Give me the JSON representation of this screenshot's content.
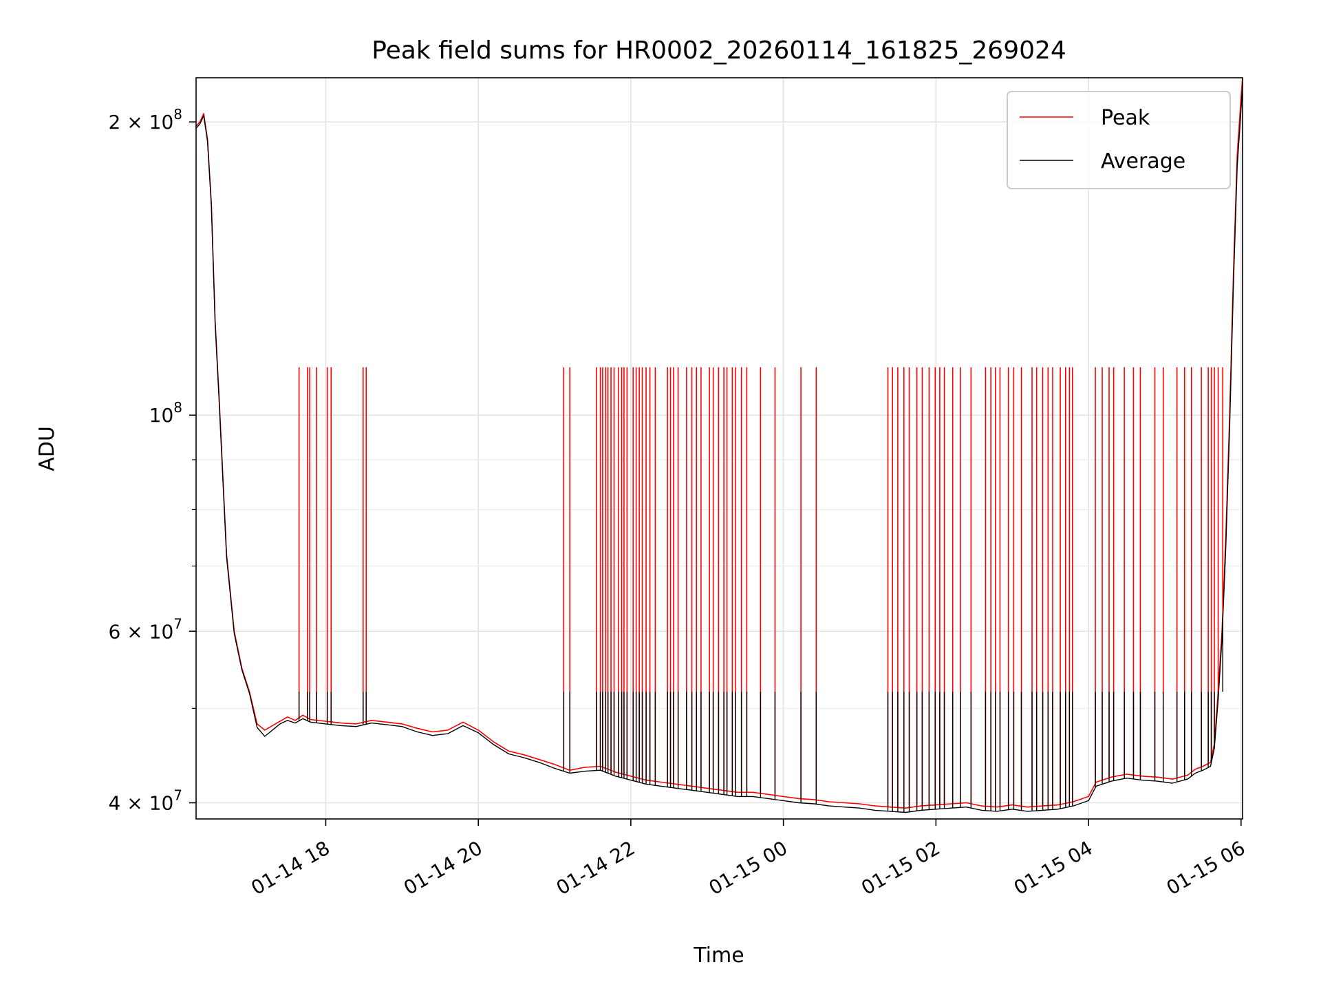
{
  "chart_data": {
    "type": "line",
    "title": "Peak field sums for HR0002_20260114_161825_269024",
    "xlabel": "Time",
    "ylabel": "ADU",
    "yscale": "log",
    "grid": true,
    "legend_position": "top-right",
    "x_unit": "hours since 2026-01-14 00:00",
    "xlim": [
      16.3,
      30.02
    ],
    "ylim": [
      38500000,
      222000000
    ],
    "x_ticks": [
      {
        "value": 18,
        "label": "01-14 18"
      },
      {
        "value": 20,
        "label": "01-14 20"
      },
      {
        "value": 22,
        "label": "01-14 22"
      },
      {
        "value": 24,
        "label": "01-15 00"
      },
      {
        "value": 26,
        "label": "01-15 02"
      },
      {
        "value": 28,
        "label": "01-15 04"
      },
      {
        "value": 30,
        "label": "01-15 06"
      }
    ],
    "y_major_ticks": [
      {
        "value": 40000000,
        "mantissa": "4",
        "exp": "7"
      },
      {
        "value": 60000000,
        "mantissa": "6",
        "exp": "7"
      },
      {
        "value": 100000000,
        "mantissa": "",
        "exp": "8"
      },
      {
        "value": 200000000,
        "mantissa": "2",
        "exp": "8"
      }
    ],
    "y_minor_ticks": [
      50000000,
      70000000,
      80000000,
      90000000
    ],
    "series": [
      {
        "name": "Peak",
        "color": "#ff0000",
        "points": [
          [
            16.3,
            198000000
          ],
          [
            16.35,
            200000000
          ],
          [
            16.4,
            204000000
          ],
          [
            16.42,
            199000000
          ],
          [
            16.45,
            192000000
          ],
          [
            16.5,
            165000000
          ],
          [
            16.55,
            125000000
          ],
          [
            16.6,
            105000000
          ],
          [
            16.7,
            72000000
          ],
          [
            16.8,
            60000000
          ],
          [
            16.9,
            55000000
          ],
          [
            17.0,
            52000000
          ],
          [
            17.1,
            48200000
          ],
          [
            17.2,
            47500000
          ],
          [
            17.3,
            48000000
          ],
          [
            17.4,
            48500000
          ],
          [
            17.5,
            49000000
          ],
          [
            17.6,
            48600000
          ],
          [
            17.7,
            49200000
          ],
          [
            17.8,
            48700000
          ],
          [
            18.0,
            48500000
          ],
          [
            18.2,
            48300000
          ],
          [
            18.4,
            48200000
          ],
          [
            18.6,
            48600000
          ],
          [
            18.8,
            48400000
          ],
          [
            19.0,
            48200000
          ],
          [
            19.2,
            47700000
          ],
          [
            19.4,
            47300000
          ],
          [
            19.6,
            47500000
          ],
          [
            19.8,
            48400000
          ],
          [
            20.0,
            47500000
          ],
          [
            20.2,
            46200000
          ],
          [
            20.4,
            45200000
          ],
          [
            20.6,
            44800000
          ],
          [
            20.8,
            44300000
          ],
          [
            21.0,
            43800000
          ],
          [
            21.2,
            43200000
          ],
          [
            21.4,
            43500000
          ],
          [
            21.6,
            43600000
          ],
          [
            21.8,
            43000000
          ],
          [
            22.0,
            42600000
          ],
          [
            22.2,
            42200000
          ],
          [
            22.4,
            42000000
          ],
          [
            22.6,
            41800000
          ],
          [
            22.8,
            41600000
          ],
          [
            23.0,
            41400000
          ],
          [
            23.2,
            41200000
          ],
          [
            23.4,
            41000000
          ],
          [
            23.6,
            41000000
          ],
          [
            23.8,
            40800000
          ],
          [
            24.0,
            40600000
          ],
          [
            24.2,
            40400000
          ],
          [
            24.4,
            40300000
          ],
          [
            24.6,
            40100000
          ],
          [
            24.8,
            40000000
          ],
          [
            25.0,
            39900000
          ],
          [
            25.2,
            39700000
          ],
          [
            25.4,
            39600000
          ],
          [
            25.6,
            39500000
          ],
          [
            25.8,
            39700000
          ],
          [
            26.0,
            39800000
          ],
          [
            26.2,
            39900000
          ],
          [
            26.4,
            40000000
          ],
          [
            26.6,
            39700000
          ],
          [
            26.8,
            39600000
          ],
          [
            27.0,
            39800000
          ],
          [
            27.2,
            39600000
          ],
          [
            27.4,
            39700000
          ],
          [
            27.6,
            39800000
          ],
          [
            27.8,
            40100000
          ],
          [
            28.0,
            40600000
          ],
          [
            28.1,
            42000000
          ],
          [
            28.3,
            42500000
          ],
          [
            28.5,
            42800000
          ],
          [
            28.7,
            42600000
          ],
          [
            28.9,
            42500000
          ],
          [
            29.1,
            42300000
          ],
          [
            29.3,
            42700000
          ],
          [
            29.4,
            43300000
          ],
          [
            29.5,
            43600000
          ],
          [
            29.6,
            44000000
          ],
          [
            29.65,
            46000000
          ],
          [
            29.7,
            52000000
          ],
          [
            29.75,
            60000000
          ],
          [
            29.8,
            75000000
          ],
          [
            29.85,
            100000000
          ],
          [
            29.9,
            140000000
          ],
          [
            29.95,
            185000000
          ],
          [
            30.0,
            212000000
          ],
          [
            30.02,
            222000000
          ]
        ],
        "spikes_at_x": [
          17.65,
          17.76,
          17.79,
          17.88,
          18.02,
          18.07,
          18.49,
          18.53,
          21.12,
          21.2,
          21.55,
          21.6,
          21.63,
          21.67,
          21.7,
          21.74,
          21.78,
          21.84,
          21.88,
          21.91,
          21.95,
          22.03,
          22.07,
          22.11,
          22.15,
          22.2,
          22.25,
          22.32,
          22.48,
          22.52,
          22.56,
          22.62,
          22.73,
          22.8,
          22.86,
          22.92,
          23.03,
          23.08,
          23.15,
          23.22,
          23.26,
          23.33,
          23.37,
          23.45,
          23.52,
          23.7,
          23.89,
          24.23,
          24.43,
          25.37,
          25.43,
          25.5,
          25.58,
          25.65,
          25.75,
          25.82,
          25.91,
          25.99,
          26.05,
          26.11,
          26.22,
          26.32,
          26.46,
          26.65,
          26.72,
          26.78,
          26.84,
          26.95,
          27.02,
          27.12,
          27.26,
          27.32,
          27.4,
          27.47,
          27.53,
          27.63,
          27.7,
          27.75,
          27.79,
          28.09,
          28.18,
          28.27,
          28.33,
          28.47,
          28.59,
          28.68,
          28.87,
          28.98,
          29.16,
          29.26,
          29.35,
          29.48,
          29.57,
          29.61,
          29.65,
          29.7,
          29.76
        ],
        "spike_peak_value": 112000000
      },
      {
        "name": "Average",
        "color": "#000000",
        "points": [
          [
            16.3,
            197000000
          ],
          [
            16.35,
            199000000
          ],
          [
            16.4,
            203000000
          ],
          [
            16.42,
            198000000
          ],
          [
            16.45,
            191000000
          ],
          [
            16.5,
            164000000
          ],
          [
            16.55,
            124000000
          ],
          [
            16.6,
            104000000
          ],
          [
            16.7,
            71500000
          ],
          [
            16.8,
            59700000
          ],
          [
            16.9,
            54800000
          ],
          [
            17.0,
            51800000
          ],
          [
            17.1,
            47800000
          ],
          [
            17.2,
            46800000
          ],
          [
            17.3,
            47500000
          ],
          [
            17.4,
            48200000
          ],
          [
            17.5,
            48600000
          ],
          [
            17.6,
            48300000
          ],
          [
            17.7,
            48800000
          ],
          [
            17.8,
            48400000
          ],
          [
            18.0,
            48200000
          ],
          [
            18.2,
            48000000
          ],
          [
            18.4,
            47900000
          ],
          [
            18.6,
            48300000
          ],
          [
            18.8,
            48100000
          ],
          [
            19.0,
            47900000
          ],
          [
            19.2,
            47300000
          ],
          [
            19.4,
            46900000
          ],
          [
            19.6,
            47100000
          ],
          [
            19.8,
            48000000
          ],
          [
            20.0,
            47200000
          ],
          [
            20.2,
            45900000
          ],
          [
            20.4,
            44900000
          ],
          [
            20.6,
            44500000
          ],
          [
            20.8,
            44000000
          ],
          [
            21.0,
            43400000
          ],
          [
            21.2,
            42900000
          ],
          [
            21.4,
            43100000
          ],
          [
            21.6,
            43200000
          ],
          [
            21.8,
            42600000
          ],
          [
            22.0,
            42200000
          ],
          [
            22.2,
            41800000
          ],
          [
            22.4,
            41600000
          ],
          [
            22.6,
            41400000
          ],
          [
            22.8,
            41200000
          ],
          [
            23.0,
            41000000
          ],
          [
            23.2,
            40800000
          ],
          [
            23.4,
            40600000
          ],
          [
            23.6,
            40600000
          ],
          [
            23.8,
            40400000
          ],
          [
            24.0,
            40200000
          ],
          [
            24.2,
            40000000
          ],
          [
            24.4,
            39900000
          ],
          [
            24.6,
            39700000
          ],
          [
            24.8,
            39600000
          ],
          [
            25.0,
            39500000
          ],
          [
            25.2,
            39300000
          ],
          [
            25.4,
            39200000
          ],
          [
            25.6,
            39100000
          ],
          [
            25.8,
            39300000
          ],
          [
            26.0,
            39400000
          ],
          [
            26.2,
            39500000
          ],
          [
            26.4,
            39600000
          ],
          [
            26.6,
            39300000
          ],
          [
            26.8,
            39200000
          ],
          [
            27.0,
            39400000
          ],
          [
            27.2,
            39200000
          ],
          [
            27.4,
            39300000
          ],
          [
            27.6,
            39400000
          ],
          [
            27.8,
            39700000
          ],
          [
            28.0,
            40200000
          ],
          [
            28.1,
            41600000
          ],
          [
            28.3,
            42100000
          ],
          [
            28.5,
            42400000
          ],
          [
            28.7,
            42200000
          ],
          [
            28.9,
            42100000
          ],
          [
            29.1,
            41900000
          ],
          [
            29.3,
            42300000
          ],
          [
            29.4,
            42900000
          ],
          [
            29.5,
            43200000
          ],
          [
            29.6,
            43600000
          ],
          [
            29.65,
            45500000
          ],
          [
            29.7,
            51000000
          ],
          [
            29.75,
            59000000
          ],
          [
            29.8,
            73000000
          ],
          [
            29.85,
            97000000
          ],
          [
            29.9,
            136000000
          ],
          [
            29.95,
            180000000
          ],
          [
            30.0,
            206000000
          ],
          [
            30.02,
            218000000
          ]
        ],
        "spike_peak_value": 52000000
      }
    ]
  }
}
